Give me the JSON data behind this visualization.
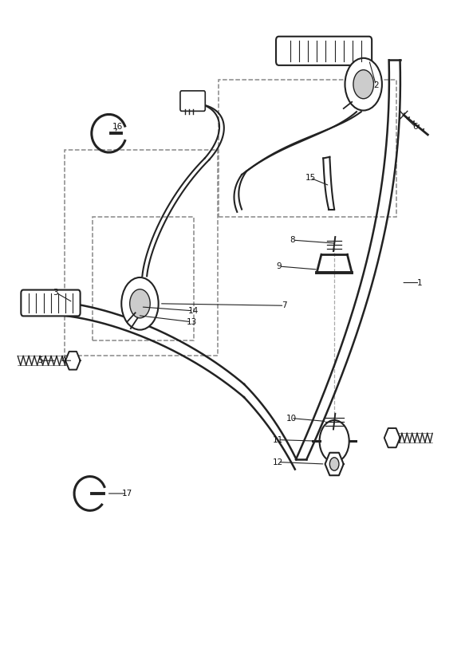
{
  "bg_color": "#ffffff",
  "line_color": "#222222",
  "label_color": "#111111",
  "fig_width": 5.83,
  "fig_height": 8.24
}
